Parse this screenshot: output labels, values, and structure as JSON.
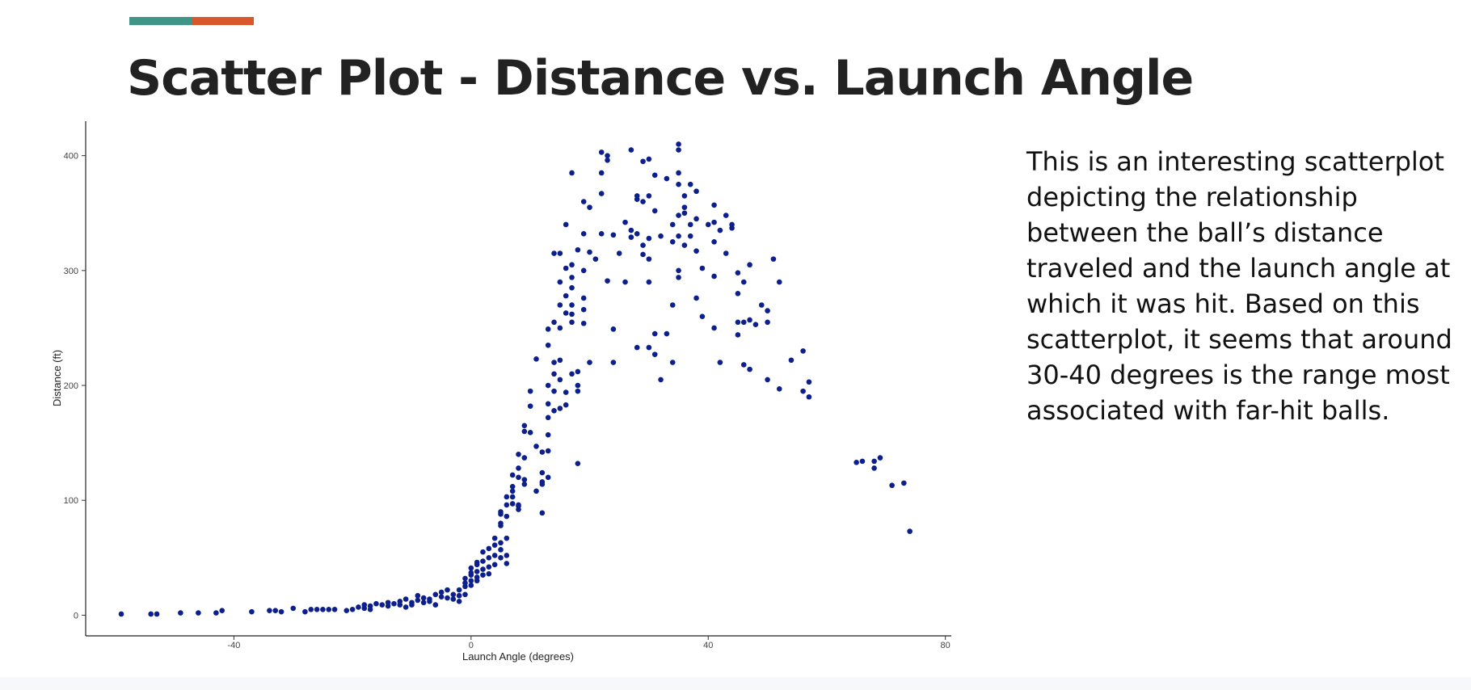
{
  "slide": {
    "title": "Scatter Plot - Distance vs. Launch Angle",
    "accent_colors": [
      "#3f9688",
      "#d9582b"
    ],
    "description": "This is an interesting scatterplot depicting the relationship between the ball’s distance traveled and the launch angle at which it was hit. Based on this scatterplot, it seems that around 30-40 degrees is the range most associated with far-hit balls."
  },
  "chart_data": {
    "type": "scatter",
    "xlabel": "Launch Angle (degrees)",
    "ylabel": "Distance (ft)",
    "xlim": [
      -65,
      81
    ],
    "ylim": [
      -18,
      430
    ],
    "xticks": [
      -40,
      0,
      40,
      80
    ],
    "yticks": [
      0,
      100,
      200,
      300,
      400
    ],
    "grid": false,
    "point_color": "#0d1f8c",
    "points": [
      [
        -59,
        1
      ],
      [
        -54,
        1
      ],
      [
        -53,
        1
      ],
      [
        -49,
        2
      ],
      [
        -46,
        2
      ],
      [
        -43,
        2
      ],
      [
        -42,
        4
      ],
      [
        -37,
        3
      ],
      [
        -34,
        4
      ],
      [
        -33,
        4
      ],
      [
        -32,
        3
      ],
      [
        -30,
        6
      ],
      [
        -28,
        3
      ],
      [
        -27,
        5
      ],
      [
        -26,
        5
      ],
      [
        -25,
        5
      ],
      [
        -24,
        5
      ],
      [
        -23,
        5
      ],
      [
        -21,
        4
      ],
      [
        -20,
        5
      ],
      [
        -19,
        7
      ],
      [
        -18,
        6
      ],
      [
        -18,
        9
      ],
      [
        -17,
        8
      ],
      [
        -17,
        5
      ],
      [
        -16,
        10
      ],
      [
        -15,
        9
      ],
      [
        -14,
        11
      ],
      [
        -14,
        8
      ],
      [
        -13,
        10
      ],
      [
        -12,
        12
      ],
      [
        -12,
        9
      ],
      [
        -11,
        7
      ],
      [
        -11,
        14
      ],
      [
        -10,
        11
      ],
      [
        -10,
        9
      ],
      [
        -9,
        13
      ],
      [
        -9,
        17
      ],
      [
        -8,
        11
      ],
      [
        -8,
        15
      ],
      [
        -7,
        14
      ],
      [
        -7,
        12
      ],
      [
        -6,
        18
      ],
      [
        -6,
        9
      ],
      [
        -5,
        16
      ],
      [
        -5,
        20
      ],
      [
        -4,
        22
      ],
      [
        -4,
        15
      ],
      [
        -3,
        18
      ],
      [
        -3,
        14
      ],
      [
        -2,
        22
      ],
      [
        -2,
        12
      ],
      [
        -2,
        17
      ],
      [
        -1,
        25
      ],
      [
        -1,
        28
      ],
      [
        -1,
        32
      ],
      [
        -1,
        18
      ],
      [
        0,
        26
      ],
      [
        0,
        35
      ],
      [
        0,
        41
      ],
      [
        0,
        37
      ],
      [
        0,
        30
      ],
      [
        1,
        44
      ],
      [
        1,
        38
      ],
      [
        1,
        30
      ],
      [
        1,
        33
      ],
      [
        1,
        46
      ],
      [
        2,
        40
      ],
      [
        2,
        47
      ],
      [
        2,
        55
      ],
      [
        2,
        35
      ],
      [
        3,
        50
      ],
      [
        3,
        58
      ],
      [
        3,
        42
      ],
      [
        3,
        36
      ],
      [
        4,
        61
      ],
      [
        4,
        52
      ],
      [
        4,
        67
      ],
      [
        4,
        44
      ],
      [
        5,
        63
      ],
      [
        5,
        57
      ],
      [
        5,
        50
      ],
      [
        5,
        78
      ],
      [
        5,
        80
      ],
      [
        5,
        88
      ],
      [
        5,
        90
      ],
      [
        6,
        52
      ],
      [
        6,
        45
      ],
      [
        6,
        67
      ],
      [
        6,
        86
      ],
      [
        6,
        96
      ],
      [
        6,
        103
      ],
      [
        7,
        112
      ],
      [
        7,
        97
      ],
      [
        7,
        103
      ],
      [
        7,
        108
      ],
      [
        7,
        122
      ],
      [
        8,
        92
      ],
      [
        8,
        96
      ],
      [
        8,
        95
      ],
      [
        8,
        120
      ],
      [
        8,
        128
      ],
      [
        8,
        140
      ],
      [
        9,
        137
      ],
      [
        9,
        160
      ],
      [
        9,
        165
      ],
      [
        9,
        118
      ],
      [
        9,
        114
      ],
      [
        10,
        195
      ],
      [
        10,
        182
      ],
      [
        10,
        159
      ],
      [
        11,
        223
      ],
      [
        11,
        147
      ],
      [
        11,
        108
      ],
      [
        12,
        116
      ],
      [
        12,
        142
      ],
      [
        12,
        114
      ],
      [
        12,
        89
      ],
      [
        12,
        124
      ],
      [
        13,
        200
      ],
      [
        13,
        172
      ],
      [
        13,
        184
      ],
      [
        13,
        235
      ],
      [
        13,
        249
      ],
      [
        13,
        120
      ],
      [
        13,
        143
      ],
      [
        13,
        157
      ],
      [
        14,
        255
      ],
      [
        14,
        220
      ],
      [
        14,
        210
      ],
      [
        14,
        195
      ],
      [
        14,
        178
      ],
      [
        14,
        315
      ],
      [
        15,
        315
      ],
      [
        15,
        270
      ],
      [
        15,
        290
      ],
      [
        15,
        180
      ],
      [
        15,
        250
      ],
      [
        15,
        222
      ],
      [
        15,
        205
      ],
      [
        16,
        340
      ],
      [
        16,
        302
      ],
      [
        16,
        278
      ],
      [
        16,
        263
      ],
      [
        16,
        194
      ],
      [
        16,
        183
      ],
      [
        17,
        385
      ],
      [
        17,
        305
      ],
      [
        17,
        294
      ],
      [
        17,
        285
      ],
      [
        17,
        270
      ],
      [
        17,
        262
      ],
      [
        17,
        255
      ],
      [
        17,
        210
      ],
      [
        18,
        200
      ],
      [
        18,
        195
      ],
      [
        18,
        132
      ],
      [
        18,
        212
      ],
      [
        18,
        318
      ],
      [
        19,
        360
      ],
      [
        19,
        332
      ],
      [
        19,
        300
      ],
      [
        19,
        276
      ],
      [
        19,
        266
      ],
      [
        19,
        254
      ],
      [
        20,
        355
      ],
      [
        20,
        316
      ],
      [
        20,
        220
      ],
      [
        21,
        310
      ],
      [
        22,
        403
      ],
      [
        22,
        385
      ],
      [
        22,
        367
      ],
      [
        22,
        332
      ],
      [
        23,
        400
      ],
      [
        23,
        396
      ],
      [
        23,
        291
      ],
      [
        24,
        249
      ],
      [
        24,
        220
      ],
      [
        24,
        331
      ],
      [
        25,
        315
      ],
      [
        26,
        290
      ],
      [
        26,
        342
      ],
      [
        27,
        405
      ],
      [
        27,
        335
      ],
      [
        27,
        329
      ],
      [
        28,
        365
      ],
      [
        28,
        362
      ],
      [
        28,
        332
      ],
      [
        28,
        233
      ],
      [
        29,
        395
      ],
      [
        29,
        360
      ],
      [
        29,
        314
      ],
      [
        29,
        322
      ],
      [
        30,
        397
      ],
      [
        30,
        365
      ],
      [
        30,
        328
      ],
      [
        30,
        310
      ],
      [
        30,
        290
      ],
      [
        30,
        233
      ],
      [
        31,
        383
      ],
      [
        31,
        352
      ],
      [
        31,
        245
      ],
      [
        31,
        227
      ],
      [
        32,
        330
      ],
      [
        32,
        205
      ],
      [
        33,
        380
      ],
      [
        33,
        245
      ],
      [
        34,
        270
      ],
      [
        34,
        340
      ],
      [
        34,
        325
      ],
      [
        34,
        220
      ],
      [
        35,
        410
      ],
      [
        35,
        405
      ],
      [
        35,
        385
      ],
      [
        35,
        375
      ],
      [
        35,
        348
      ],
      [
        35,
        330
      ],
      [
        35,
        300
      ],
      [
        35,
        294
      ],
      [
        36,
        355
      ],
      [
        36,
        365
      ],
      [
        36,
        350
      ],
      [
        36,
        322
      ],
      [
        37,
        330
      ],
      [
        37,
        375
      ],
      [
        37,
        340
      ],
      [
        38,
        369
      ],
      [
        38,
        345
      ],
      [
        38,
        317
      ],
      [
        38,
        276
      ],
      [
        39,
        302
      ],
      [
        39,
        260
      ],
      [
        40,
        340
      ],
      [
        41,
        357
      ],
      [
        41,
        342
      ],
      [
        41,
        325
      ],
      [
        41,
        295
      ],
      [
        41,
        250
      ],
      [
        42,
        335
      ],
      [
        42,
        220
      ],
      [
        43,
        348
      ],
      [
        43,
        315
      ],
      [
        44,
        340
      ],
      [
        44,
        337
      ],
      [
        45,
        298
      ],
      [
        45,
        280
      ],
      [
        45,
        255
      ],
      [
        45,
        244
      ],
      [
        46,
        290
      ],
      [
        46,
        255
      ],
      [
        46,
        218
      ],
      [
        47,
        305
      ],
      [
        47,
        257
      ],
      [
        47,
        214
      ],
      [
        48,
        253
      ],
      [
        49,
        270
      ],
      [
        50,
        265
      ],
      [
        50,
        255
      ],
      [
        50,
        205
      ],
      [
        51,
        310
      ],
      [
        52,
        290
      ],
      [
        52,
        197
      ],
      [
        54,
        222
      ],
      [
        56,
        230
      ],
      [
        56,
        195
      ],
      [
        57,
        190
      ],
      [
        57,
        203
      ],
      [
        65,
        133
      ],
      [
        66,
        134
      ],
      [
        68,
        134
      ],
      [
        68,
        128
      ],
      [
        69,
        137
      ],
      [
        71,
        113
      ],
      [
        73,
        115
      ],
      [
        74,
        73
      ]
    ]
  }
}
